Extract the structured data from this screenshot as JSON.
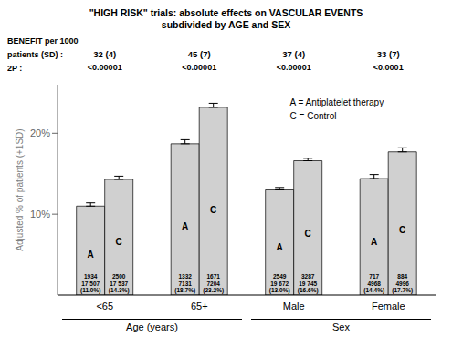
{
  "chart_data": {
    "type": "bar",
    "title": "\"HIGH RISK\"  trials: absolute effects on VASCULAR EVENTS",
    "subtitle": "subdivided by AGE and SEX",
    "y_label": "Adjusted % of patients (+1SD)",
    "categories": [
      "<65",
      "65+",
      "Male",
      "Female"
    ],
    "category_groups": [
      {
        "label": "Age (years)",
        "categories": [
          "<65",
          "65+"
        ]
      },
      {
        "label": "Sex",
        "categories": [
          "Male",
          "Female"
        ]
      }
    ],
    "series": [
      {
        "name": "A = Antiplatelet therapy",
        "label": "A",
        "color": "#d0d0d0",
        "values": [
          11.0,
          18.7,
          13.0,
          14.4
        ],
        "errors": [
          0.4,
          0.5,
          0.3,
          0.5
        ],
        "bar_texts": [
          "1934\n17 507\n(11.0%)",
          "1332\n7131\n(18.7%)",
          "2549\n19 672\n(13.0%)",
          "717\n4968\n(14.4%)"
        ]
      },
      {
        "name": "C = Control",
        "label": "C",
        "color": "#d0d0d0",
        "values": [
          14.3,
          23.2,
          16.6,
          17.7
        ],
        "errors": [
          0.4,
          0.5,
          0.3,
          0.5
        ],
        "bar_texts": [
          "2500\n17 537\n(14.3%)",
          "1671\n7204\n(23.2%)",
          "3287\n19 745\n(16.6%)",
          "884\n4996\n(17.7%)"
        ]
      }
    ],
    "benefit_labels": [
      "BENEFIT per 1000",
      "patients (SD) :",
      "2P :"
    ],
    "benefit_values": [
      "32 (4)",
      "45 (7)",
      "37 (4)",
      "33 (7)"
    ],
    "pvalues": [
      "<0.00001",
      "<0.00001",
      "<0.00001",
      "<0.0001"
    ],
    "ylim": [
      0,
      26
    ],
    "yticks": [
      {
        "value": 10,
        "label": "10%"
      },
      {
        "value": 20,
        "label": "20%"
      }
    ],
    "grid": false,
    "legend": "upper right"
  }
}
